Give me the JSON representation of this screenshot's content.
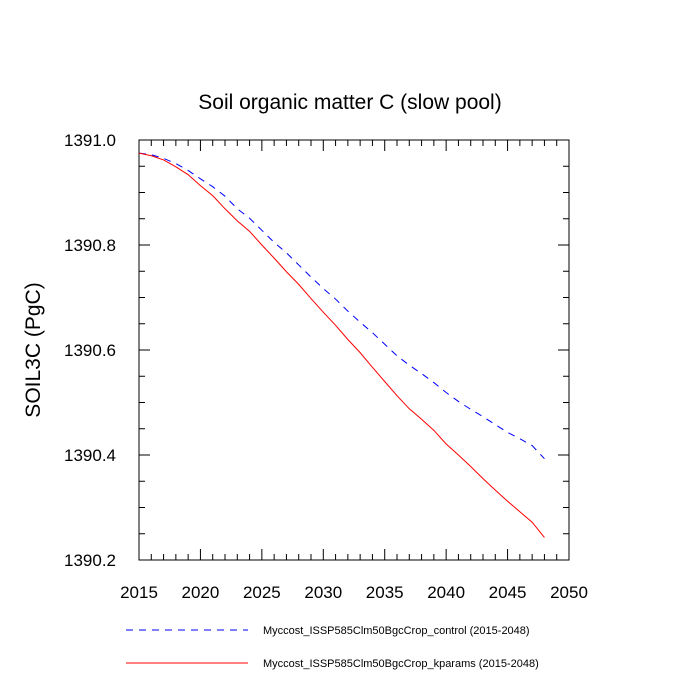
{
  "chart_data": {
    "type": "line",
    "title": "Soil organic matter C (slow pool)",
    "xlabel": "",
    "ylabel": "SOIL3C  (PgC)",
    "xlim": [
      2015,
      2050
    ],
    "ylim": [
      1390.2,
      1391.0
    ],
    "xticks": [
      2015,
      2020,
      2025,
      2030,
      2035,
      2040,
      2045,
      2050
    ],
    "yticks": [
      1390.2,
      1390.4,
      1390.6,
      1390.8,
      1391.0
    ],
    "ytick_labels": [
      "1390.2",
      "1390.4",
      "1390.6",
      "1390.8",
      "1391.0"
    ],
    "grid": false,
    "legend_position": "bottom",
    "series": [
      {
        "name": "Myccost_ISSP585Clm50BgcCrop_control (2015-2048)",
        "color": "#0000ff",
        "style": "dashed",
        "x": [
          2015,
          2016,
          2017,
          2018,
          2019,
          2020,
          2021,
          2022,
          2023,
          2024,
          2025,
          2026,
          2027,
          2028,
          2029,
          2030,
          2031,
          2032,
          2033,
          2034,
          2035,
          2036,
          2037,
          2038,
          2039,
          2040,
          2041,
          2042,
          2043,
          2044,
          2045,
          2046,
          2047,
          2048
        ],
        "y": [
          1390.975,
          1390.972,
          1390.965,
          1390.955,
          1390.942,
          1390.926,
          1390.911,
          1390.893,
          1390.869,
          1390.851,
          1390.828,
          1390.805,
          1390.785,
          1390.762,
          1390.739,
          1390.717,
          1390.697,
          1390.674,
          1390.653,
          1390.633,
          1390.611,
          1390.589,
          1390.571,
          1390.555,
          1390.538,
          1390.519,
          1390.502,
          1390.487,
          1390.473,
          1390.458,
          1390.443,
          1390.431,
          1390.418,
          1390.393
        ]
      },
      {
        "name": "Myccost_ISSP585Clm50BgcCrop_kparams (2015-2048)",
        "color": "#ff0000",
        "style": "solid",
        "x": [
          2015,
          2016,
          2017,
          2018,
          2019,
          2020,
          2021,
          2022,
          2023,
          2024,
          2025,
          2026,
          2027,
          2028,
          2029,
          2030,
          2031,
          2032,
          2033,
          2034,
          2035,
          2036,
          2037,
          2038,
          2039,
          2040,
          2041,
          2042,
          2043,
          2044,
          2045,
          2046,
          2047,
          2048
        ],
        "y": [
          1390.975,
          1390.97,
          1390.962,
          1390.949,
          1390.934,
          1390.913,
          1390.894,
          1390.869,
          1390.846,
          1390.826,
          1390.8,
          1390.775,
          1390.749,
          1390.725,
          1390.698,
          1390.672,
          1390.647,
          1390.62,
          1390.595,
          1390.567,
          1390.54,
          1390.513,
          1390.488,
          1390.468,
          1390.447,
          1390.421,
          1390.4,
          1390.378,
          1390.355,
          1390.333,
          1390.312,
          1390.292,
          1390.272,
          1390.243
        ]
      }
    ]
  }
}
